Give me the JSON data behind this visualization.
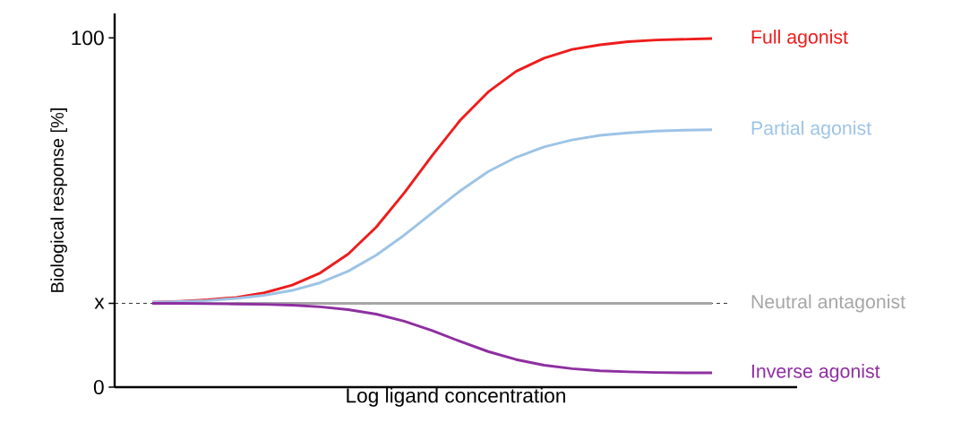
{
  "chart_data": {
    "type": "line",
    "xlabel": "Log ligand concentration",
    "ylabel": "Biological response [%]",
    "categories": [
      null,
      null,
      null,
      null,
      null,
      null,
      null,
      null,
      null,
      null,
      null,
      null,
      null,
      null,
      null,
      null,
      null,
      null,
      null,
      null,
      null
    ],
    "series": [
      {
        "name": "Full agonist",
        "color": "#ee1c1c",
        "values": [
          24.3,
          24.6,
          25,
          25.7,
          27,
          29.2,
          32.7,
          38.1,
          45.8,
          55.6,
          66.3,
          76.4,
          84.5,
          90.4,
          94.2,
          96.7,
          98,
          98.9,
          99.4,
          99.6,
          99.8
        ]
      },
      {
        "name": "Partial agonist",
        "color": "#9dc3e6",
        "values": [
          24.3,
          24.5,
          24.8,
          25.4,
          26.3,
          27.7,
          29.9,
          33.2,
          37.8,
          43.5,
          49.9,
          56.2,
          61.7,
          65.8,
          68.8,
          70.8,
          72.1,
          72.8,
          73.3,
          73.6,
          73.7
        ]
      },
      {
        "name": "Neutral antagonist",
        "color": "#a6a6a6",
        "values": [
          24,
          24,
          24,
          24,
          24,
          24,
          24,
          24,
          24,
          24,
          24,
          24,
          24,
          24,
          24,
          24,
          24,
          24,
          24,
          24,
          24
        ]
      },
      {
        "name": "Inverse agonist",
        "color": "#8e2fa0",
        "values": [
          24,
          24,
          23.9,
          23.8,
          23.7,
          23.5,
          23,
          22.2,
          20.9,
          18.9,
          16.2,
          13.1,
          10.2,
          7.9,
          6.3,
          5.3,
          4.7,
          4.4,
          4.2,
          4.1,
          4.1
        ]
      }
    ],
    "ylim": [
      0,
      107
    ],
    "yticks": [
      0,
      {
        "value": 24,
        "label": "x"
      },
      100
    ],
    "ref_lines": [
      {
        "axis": "y",
        "value": 24,
        "color": "#000000",
        "line_style": "dashed"
      }
    ],
    "legend": false,
    "line_style": "solid"
  }
}
